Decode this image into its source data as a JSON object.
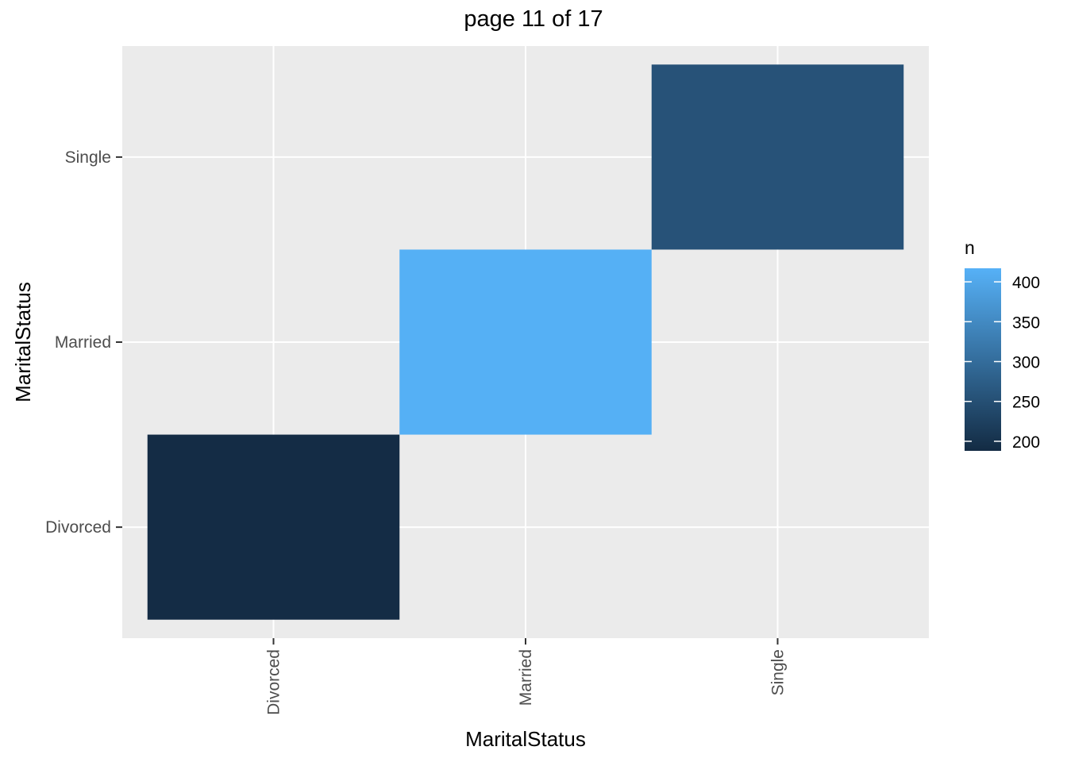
{
  "chart_data": {
    "type": "heatmap",
    "title": "page 11 of 17",
    "xlabel": "MaritalStatus",
    "ylabel": "MaritalStatus",
    "x_categories": [
      "Divorced",
      "Married",
      "Single"
    ],
    "y_categories": [
      "Divorced",
      "Married",
      "Single"
    ],
    "cells": [
      {
        "x": "Divorced",
        "y": "Divorced",
        "n": 190
      },
      {
        "x": "Married",
        "y": "Married",
        "n": 415
      },
      {
        "x": "Single",
        "y": "Single",
        "n": 255
      }
    ],
    "legend": {
      "title": "n",
      "ticks": [
        200,
        250,
        300,
        350,
        400
      ],
      "range": [
        188,
        417
      ],
      "low_color": "#132B43",
      "high_color": "#56B1F7",
      "placement": "right"
    },
    "colors": {
      "panel_background": "#EBEBEB",
      "grid": "#FFFFFF"
    },
    "grid": true
  }
}
